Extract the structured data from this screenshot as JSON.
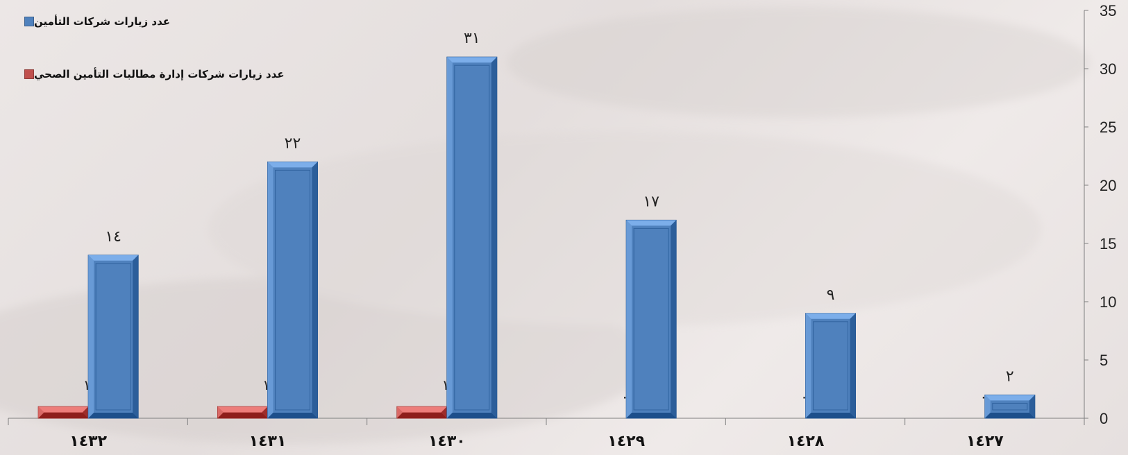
{
  "chart_data": {
    "type": "bar",
    "categories": [
      "١٤٣٢",
      "١٤٣١",
      "١٤٣٠",
      "١٤٢٩",
      "١٤٢٨",
      "١٤٢٧"
    ],
    "series": [
      {
        "name": "عدد زيارات شركات إدارة مطالبات التأمين الصحي",
        "values": [
          1,
          1,
          1,
          0,
          0,
          0
        ],
        "labels": [
          "١",
          "١",
          "١",
          "٠",
          "٠",
          "٠"
        ],
        "color": "#c0504d"
      },
      {
        "name": "عدد زيارات شركات التأمين",
        "values": [
          14,
          22,
          31,
          17,
          9,
          2
        ],
        "labels": [
          "١٤",
          "٢٢",
          "٣١",
          "١٧",
          "٩",
          "٢"
        ],
        "color": "#4f81bd"
      }
    ],
    "ylim": [
      0,
      35
    ],
    "yticks": [
      "0",
      "5",
      "10",
      "15",
      "20",
      "25",
      "30",
      "35"
    ],
    "y_axis_position": "right",
    "grid": false,
    "legend_position": "top-left"
  }
}
